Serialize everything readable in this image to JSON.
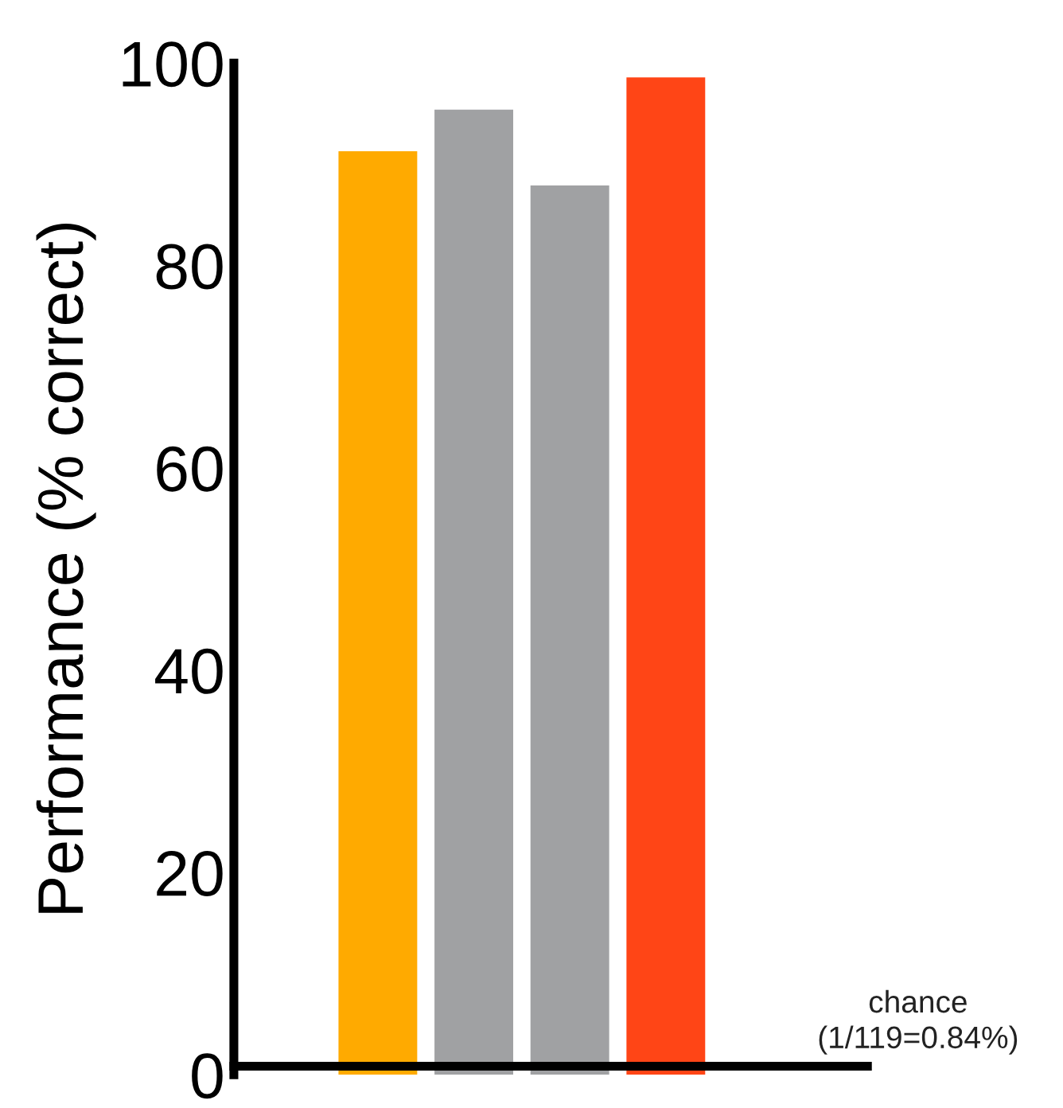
{
  "chart_data": {
    "type": "bar",
    "ylabel": "Performance (% correct)",
    "categories": [
      null,
      null,
      null,
      null
    ],
    "values": [
      91.3,
      95.4,
      87.9,
      98.6
    ],
    "colors": [
      "#ffaa00",
      "#a0a1a3",
      "#a0a1a3",
      "#ff4516"
    ],
    "ylim": [
      0,
      100
    ],
    "yticks": [
      0,
      20,
      40,
      60,
      80,
      100
    ],
    "grid": false,
    "ref_lines": [
      {
        "axis": "y",
        "value": 0.84,
        "label": "chance\n(1/119=0.84%)",
        "color": "#000000",
        "line_style": "solid"
      }
    ]
  }
}
